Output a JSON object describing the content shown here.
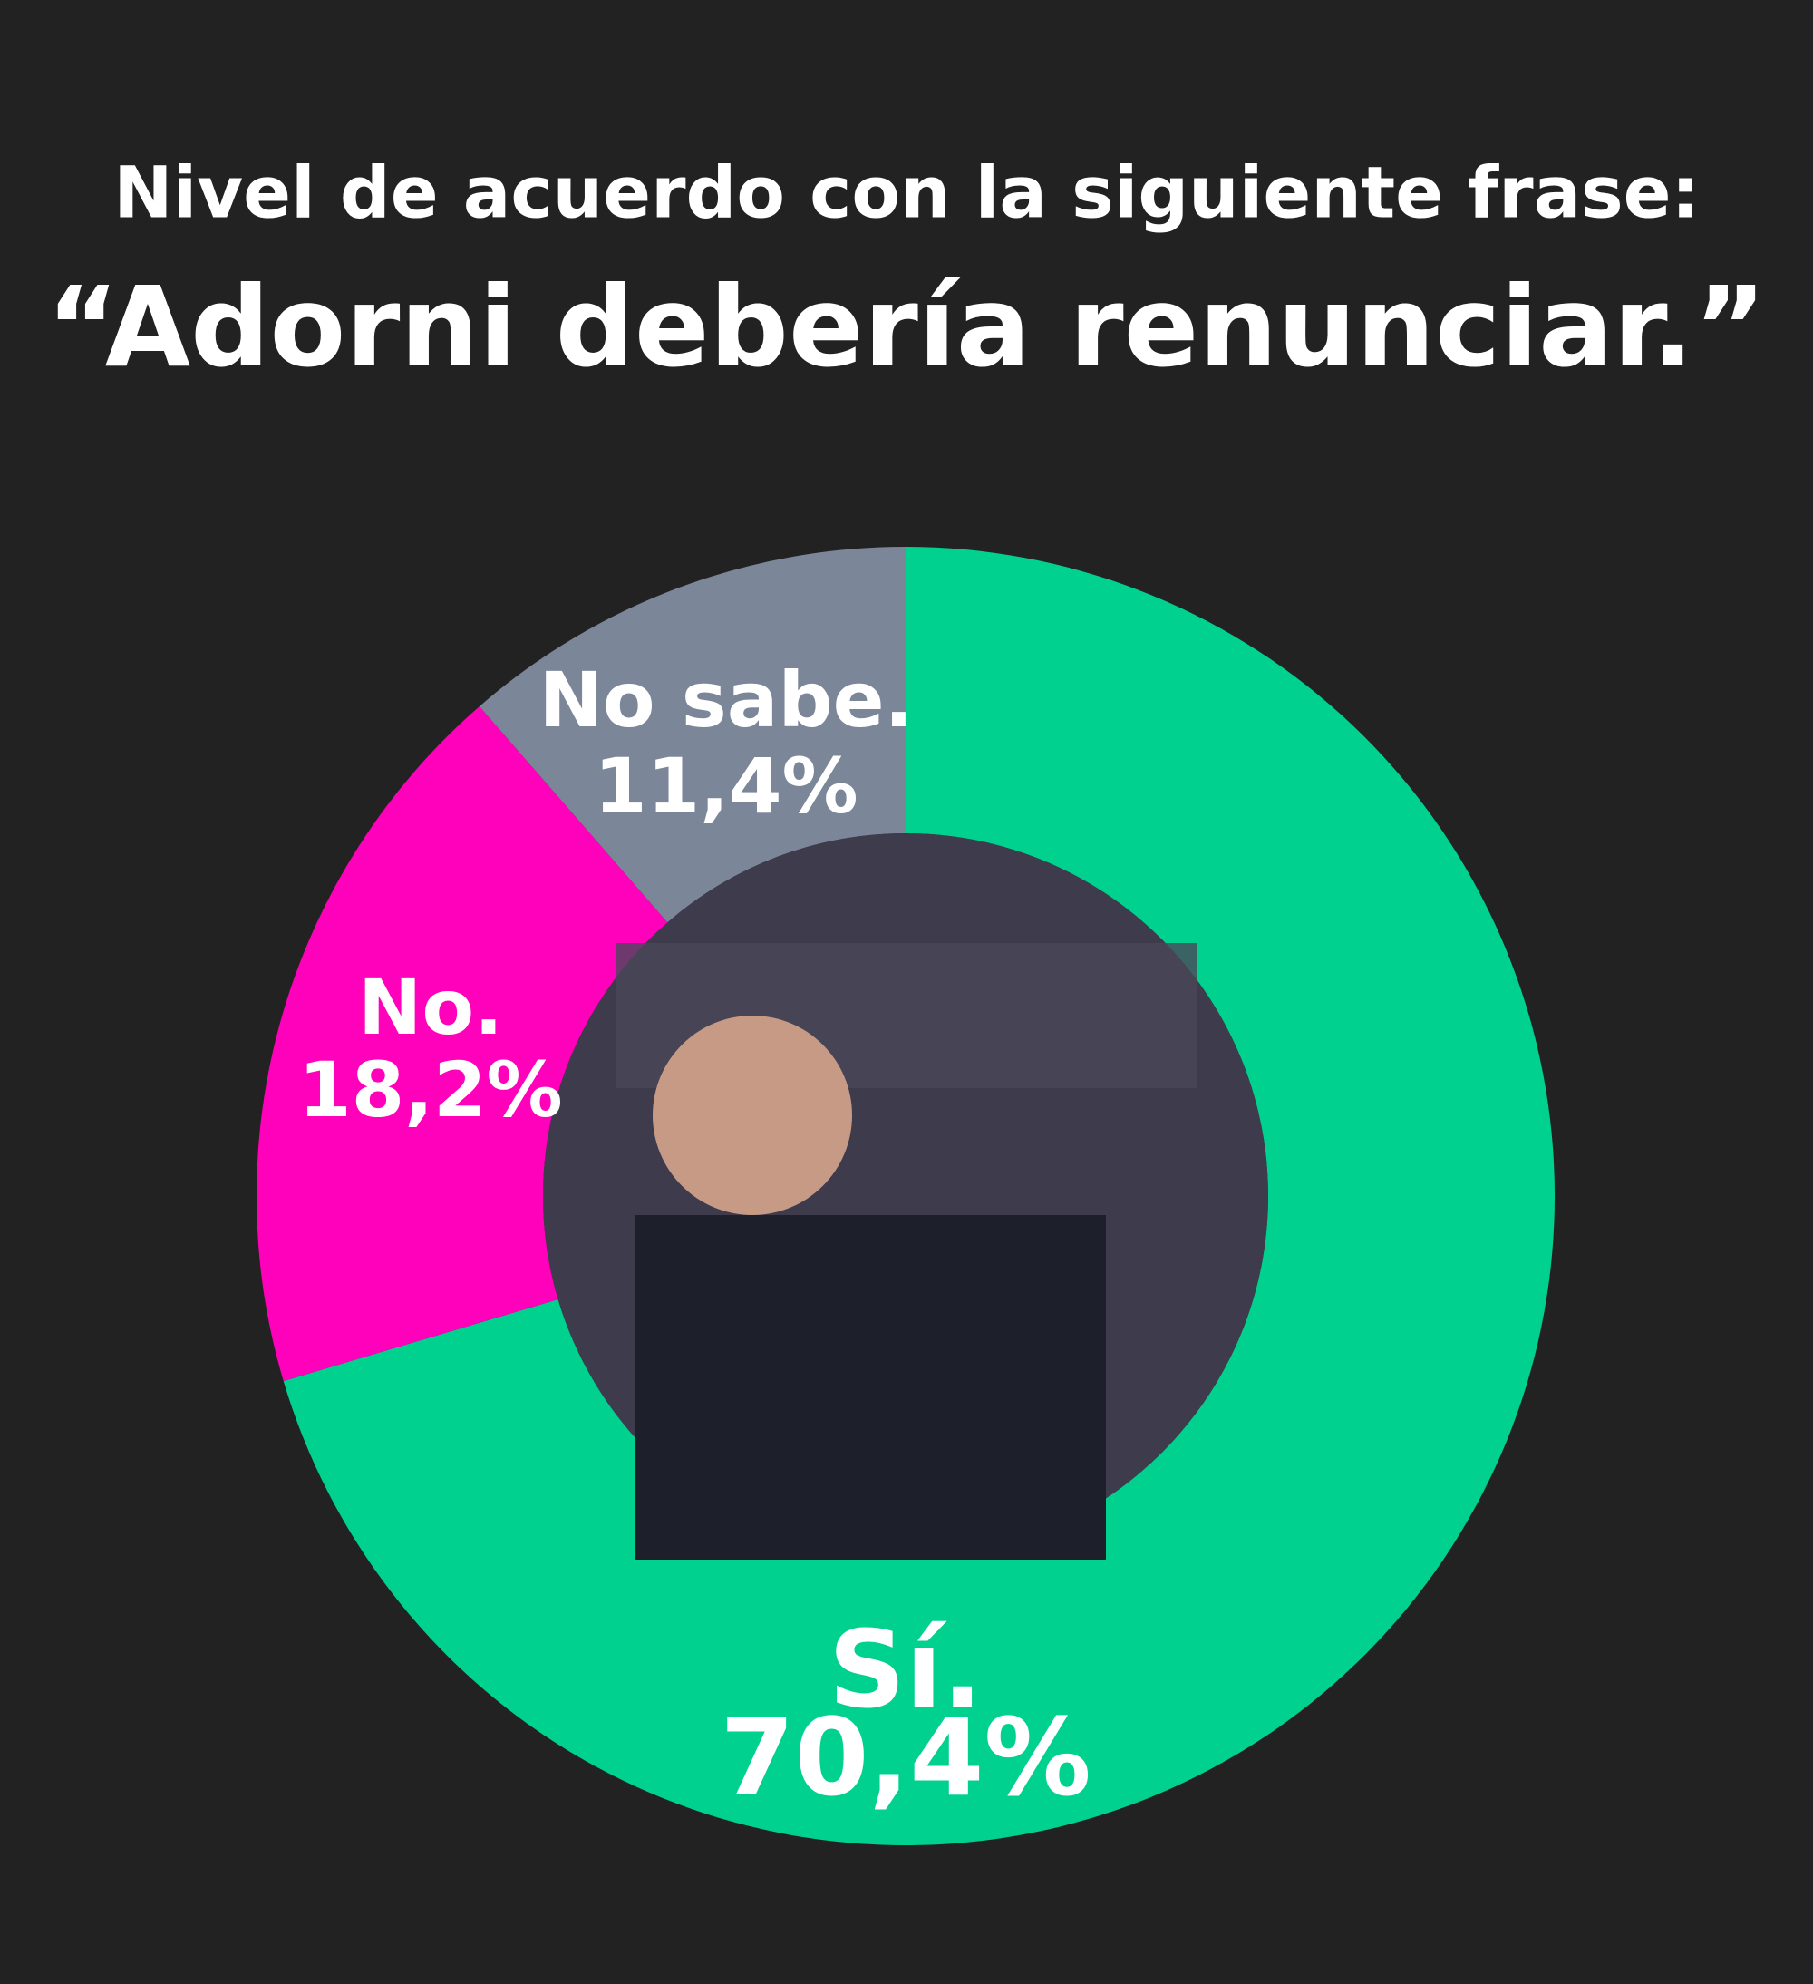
{
  "chart_data": {
    "type": "donut",
    "title": "Nivel de acuerdo con la siguiente frase:",
    "subtitle": "“Adorni debería renunciar.”",
    "categories": [
      "Sí.",
      "No.",
      "No sabe."
    ],
    "values": [
      70.4,
      18.2,
      11.4
    ],
    "value_labels": [
      "70,4%",
      "18,2%",
      "11,4%"
    ],
    "colors": [
      "#00d18f",
      "#ff00bb",
      "#7b8699"
    ]
  }
}
